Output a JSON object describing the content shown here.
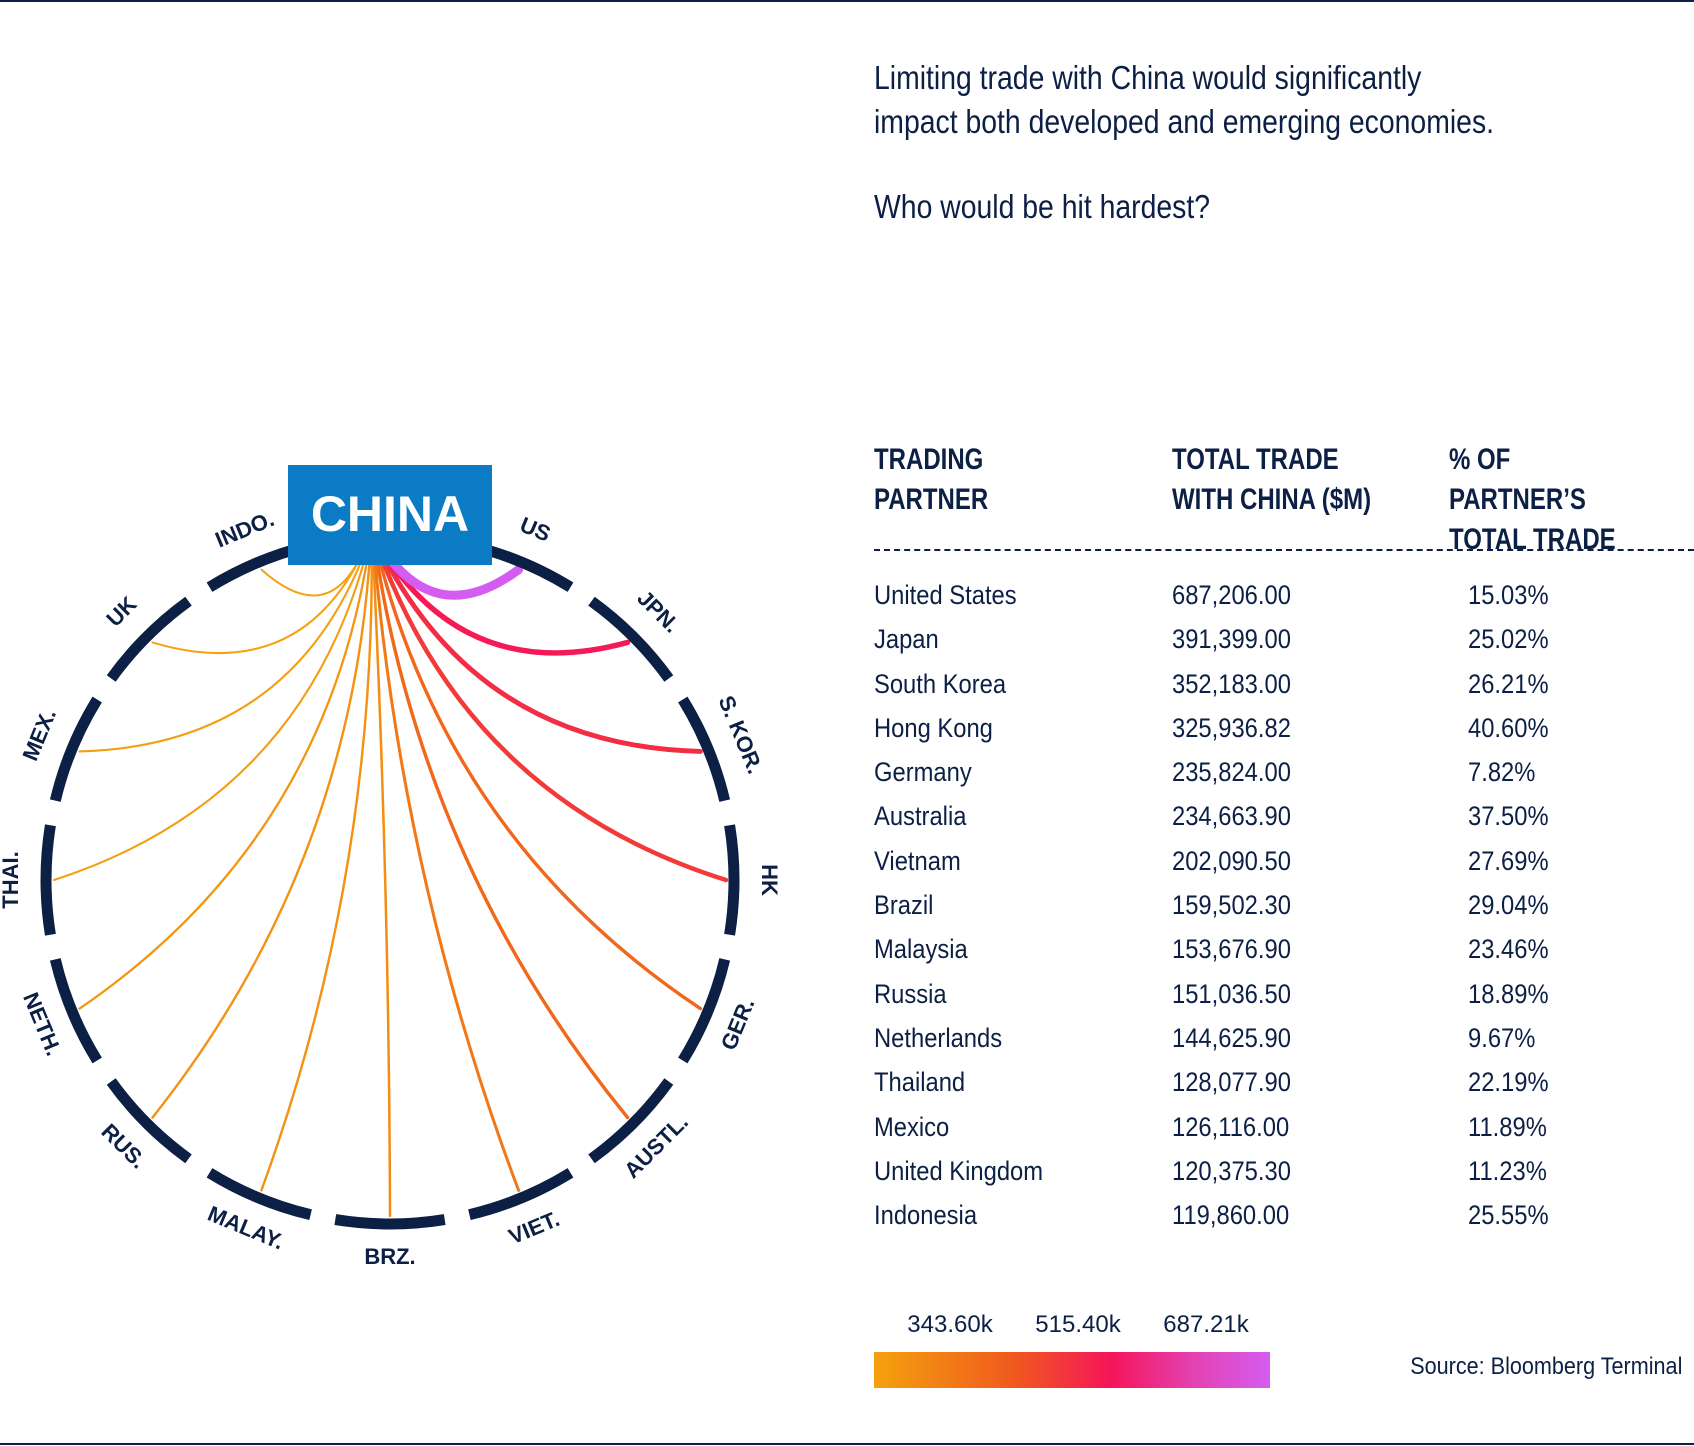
{
  "headline": {
    "line1": "Limiting trade with China would significantly",
    "line2": "impact both developed and emerging economies.",
    "question": "Who would be hit hardest?"
  },
  "chart_data": {
    "type": "chord",
    "hub_label": "CHINA",
    "partners": [
      {
        "abbr": "US",
        "name": "United States",
        "total_trade_musd": 687206.0,
        "pct_of_partner_trade": "15.03%"
      },
      {
        "abbr": "JPN.",
        "name": "Japan",
        "total_trade_musd": 391399.0,
        "pct_of_partner_trade": "25.02%"
      },
      {
        "abbr": "S. KOR.",
        "name": "South Korea",
        "total_trade_musd": 352183.0,
        "pct_of_partner_trade": "26.21%"
      },
      {
        "abbr": "HK",
        "name": "Hong Kong",
        "total_trade_musd": 325936.82,
        "pct_of_partner_trade": "40.60%"
      },
      {
        "abbr": "GER.",
        "name": "Germany",
        "total_trade_musd": 235824.0,
        "pct_of_partner_trade": "7.82%"
      },
      {
        "abbr": "AUSTL.",
        "name": "Australia",
        "total_trade_musd": 234663.9,
        "pct_of_partner_trade": "37.50%"
      },
      {
        "abbr": "VIET.",
        "name": "Vietnam",
        "total_trade_musd": 202090.5,
        "pct_of_partner_trade": "27.69%"
      },
      {
        "abbr": "BRZ.",
        "name": "Brazil",
        "total_trade_musd": 159502.3,
        "pct_of_partner_trade": "29.04%"
      },
      {
        "abbr": "MALAY.",
        "name": "Malaysia",
        "total_trade_musd": 153676.9,
        "pct_of_partner_trade": "23.46%"
      },
      {
        "abbr": "RUS.",
        "name": "Russia",
        "total_trade_musd": 151036.5,
        "pct_of_partner_trade": "18.89%"
      },
      {
        "abbr": "NETH.",
        "name": "Netherlands",
        "total_trade_musd": 144625.9,
        "pct_of_partner_trade": "9.67%"
      },
      {
        "abbr": "THAI.",
        "name": "Thailand",
        "total_trade_musd": 128077.9,
        "pct_of_partner_trade": "22.19%"
      },
      {
        "abbr": "MEX.",
        "name": "Mexico",
        "total_trade_musd": 126116.0,
        "pct_of_partner_trade": "11.89%"
      },
      {
        "abbr": "UK",
        "name": "United Kingdom",
        "total_trade_musd": 120375.3,
        "pct_of_partner_trade": "11.23%"
      },
      {
        "abbr": "INDO.",
        "name": "Indonesia",
        "total_trade_musd": 119860.0,
        "pct_of_partner_trade": "25.55%"
      }
    ],
    "color_scale": {
      "ticks": [
        "343.60k",
        "515.40k",
        "687.21k"
      ],
      "stops": [
        "#f4a20e",
        "#f05a1e",
        "#f5145a",
        "#e441b0",
        "#d45cf0"
      ]
    }
  },
  "table": {
    "headers": [
      "TRADING\nPARTNER",
      "TOTAL TRADE\nWITH CHINA ($M)",
      "% OF PARTNER’S\nTOTAL TRADE"
    ],
    "rows": [
      [
        "United States",
        "687,206.00",
        "15.03%"
      ],
      [
        "Japan",
        "391,399.00",
        "25.02%"
      ],
      [
        "South Korea",
        "352,183.00",
        "26.21%"
      ],
      [
        "Hong Kong",
        "325,936.82",
        "40.60%"
      ],
      [
        "Germany",
        "235,824.00",
        "7.82%"
      ],
      [
        "Australia",
        "234,663.90",
        "37.50%"
      ],
      [
        "Vietnam",
        "202,090.50",
        "27.69%"
      ],
      [
        "Brazil",
        "159,502.30",
        "29.04%"
      ],
      [
        "Malaysia",
        "153,676.90",
        "23.46%"
      ],
      [
        "Russia",
        "151,036.50",
        "18.89%"
      ],
      [
        "Netherlands",
        "144,625.90",
        "9.67%"
      ],
      [
        "Thailand",
        "128,077.90",
        "22.19%"
      ],
      [
        "Mexico",
        "126,116.00",
        "11.89%"
      ],
      [
        "United Kingdom",
        "120,375.30",
        "11.23%"
      ],
      [
        "Indonesia",
        "119,860.00",
        "25.55%"
      ]
    ]
  },
  "source": "Source: Bloomberg Terminal",
  "colors": {
    "navy": "#0c1f44",
    "china_box": "#0a7bc4"
  }
}
